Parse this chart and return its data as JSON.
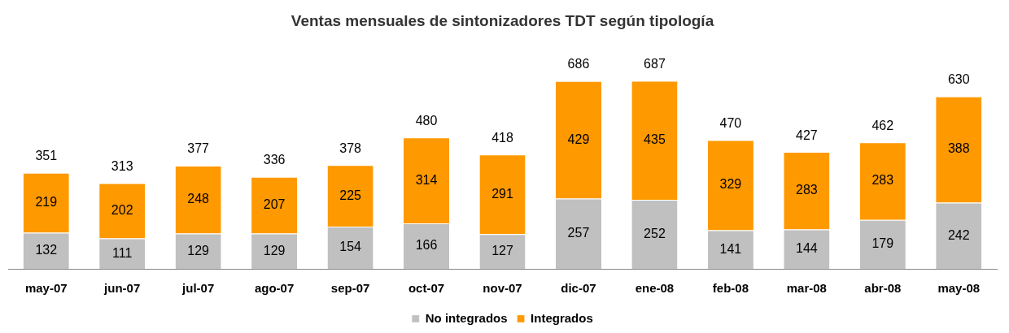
{
  "chart_data": {
    "type": "bar",
    "title": "Ventas mensuales de sintonizadores TDT según tipología",
    "categories": [
      "may-07",
      "jun-07",
      "jul-07",
      "ago-07",
      "sep-07",
      "oct-07",
      "nov-07",
      "dic-07",
      "ene-08",
      "feb-08",
      "mar-08",
      "abr-08",
      "may-08"
    ],
    "stacked": true,
    "data_labels": true,
    "legend": "bottom",
    "grid": false,
    "tick_labels": "x",
    "series": [
      {
        "name": "No integrados",
        "color": "#c0c0c0",
        "values": [
          132,
          111,
          129,
          129,
          154,
          166,
          127,
          257,
          252,
          141,
          144,
          179,
          242
        ]
      },
      {
        "name": "Integrados",
        "color": "#ff9900",
        "values": [
          219,
          202,
          248,
          207,
          225,
          314,
          291,
          429,
          435,
          329,
          283,
          283,
          388
        ]
      }
    ],
    "totals": [
      "351",
      "313",
      "377",
      "336",
      "378",
      "480",
      "418",
      "686",
      "687",
      "470",
      "427",
      "462",
      "630"
    ]
  }
}
